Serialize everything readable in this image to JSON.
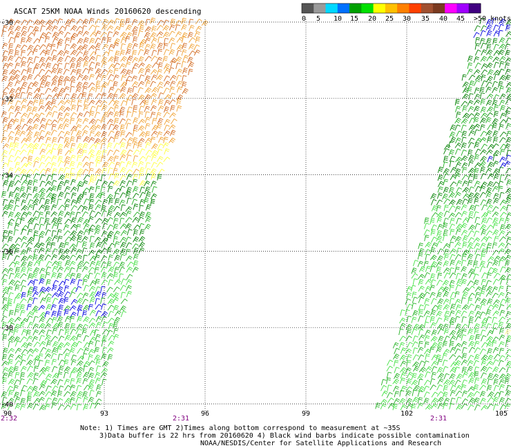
{
  "title": "ASCAT 25KM NOAA Winds 20160620 descending",
  "legend": {
    "labels": [
      "0",
      "5",
      "10",
      "15",
      "20",
      "25",
      "30",
      "35",
      "40",
      "45",
      ">50 knots"
    ],
    "colors": [
      "#555555",
      "#9a9a9a",
      "#00d8ff",
      "#0070ff",
      "#00a000",
      "#00e000",
      "#ffff00",
      "#ffc000",
      "#ff8000",
      "#ff4000",
      "#a05030",
      "#7a3a20",
      "#ff00ff",
      "#a000ff",
      "#400080"
    ]
  },
  "lat_labels": [
    "-30",
    "-32",
    "-34",
    "-36",
    "-38",
    "-40"
  ],
  "lon_labels": [
    "90",
    "93",
    "96",
    "99",
    "102",
    "105"
  ],
  "times": [
    "2:32",
    "2:31",
    "2:31"
  ],
  "notes": [
    "Note: 1) Times are GMT 2)Times along bottom correspond to measurement at ~35S",
    "3)Data buffer is 22 hrs from 20160620 4) Black wind barbs indicate possible contamination",
    "NOAA/NESDIS/Center for Satellite Applications and Research"
  ],
  "colors": {
    "orange": "#d2691e",
    "light_orange": "#f0a030",
    "yellow": "#ffff40",
    "green_dark": "#008000",
    "green": "#20b020",
    "green_light": "#40e040",
    "blue": "#0000e0"
  }
}
